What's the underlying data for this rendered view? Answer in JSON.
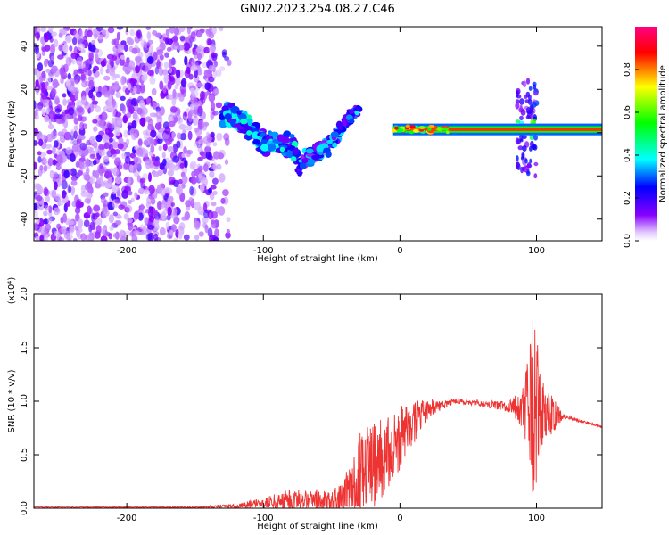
{
  "title": "GN02.2023.254.08.27.C46",
  "chart_data": [
    {
      "type": "heatmap",
      "panel": "spectrogram",
      "xlabel": "Height of straight line (km)",
      "ylabel": "Frequency (Hz)",
      "xlim": [
        -268,
        148
      ],
      "ylim": [
        -50,
        49
      ],
      "xticks": [
        -200,
        -100,
        0,
        100
      ],
      "xtick_labels": [
        "-200",
        "-100",
        "0",
        "100"
      ],
      "yticks": [
        -40,
        -20,
        0,
        20,
        40
      ],
      "ytick_labels": [
        "-40",
        "-20",
        "0",
        "20",
        "40"
      ],
      "colorbar": {
        "label": "Normalized spectral amplitude",
        "range": [
          0,
          1
        ],
        "ticks": [
          0.0,
          0.2,
          0.4,
          0.6,
          0.8
        ],
        "tick_labels": [
          "0.0",
          "0.2",
          "0.4",
          "0.6",
          "0.8"
        ],
        "colors": [
          "#ffffff",
          "#8800ff",
          "#0000ff",
          "#00ffff",
          "#00ff00",
          "#ffff00",
          "#ff0000",
          "#ff0080"
        ]
      },
      "features": [
        {
          "name": "broadband noise",
          "x": [
            -268,
            -135
          ],
          "y": [
            -50,
            49
          ],
          "level": 0.1
        },
        {
          "name": "signal band",
          "x": [
            -5,
            148
          ],
          "y": [
            0,
            3
          ],
          "level": 0.85
        },
        {
          "name": "descending chirp",
          "x": [
            -130,
            -75
          ],
          "y": [
            8,
            -10
          ],
          "level": 0.35
        },
        {
          "name": "arc",
          "x": [
            -75,
            -30
          ],
          "y": [
            -18,
            10
          ],
          "level": 0.3
        },
        {
          "name": "oscillation near 90 km",
          "x": [
            85,
            100
          ],
          "y": [
            -20,
            25
          ],
          "level": 0.2
        }
      ]
    },
    {
      "type": "line",
      "panel": "snr",
      "xlabel": "Height of straight line (km)",
      "ylabel": "SNR (10 * v/v)",
      "scale_label": "(x10⁴)",
      "xlim": [
        -268,
        148
      ],
      "ylim": [
        0,
        2.0
      ],
      "xticks": [
        -200,
        -100,
        0,
        100
      ],
      "xtick_labels": [
        "-200",
        "-100",
        "0",
        "100"
      ],
      "yticks": [
        0,
        0.5,
        1.0,
        1.5,
        2.0
      ],
      "ytick_labels": [
        "0.0",
        "0.5",
        "1.0",
        "1.5",
        "2.0"
      ],
      "color": "#ee3333",
      "envelope": {
        "x": [
          -268,
          -200,
          -150,
          -120,
          -100,
          -80,
          -60,
          -50,
          -40,
          -30,
          -20,
          -10,
          0,
          10,
          20,
          40,
          60,
          80,
          90,
          98,
          105,
          120,
          148
        ],
        "mean": [
          0.01,
          0.01,
          0.01,
          0.02,
          0.05,
          0.08,
          0.08,
          0.07,
          0.12,
          0.3,
          0.4,
          0.5,
          0.65,
          0.8,
          0.92,
          1.0,
          0.98,
          0.95,
          0.93,
          0.9,
          0.88,
          0.86,
          0.76
        ],
        "amp": [
          0.003,
          0.004,
          0.006,
          0.02,
          0.05,
          0.1,
          0.11,
          0.08,
          0.2,
          0.4,
          0.4,
          0.35,
          0.3,
          0.2,
          0.1,
          0.02,
          0.03,
          0.05,
          0.2,
          0.95,
          0.3,
          0.02,
          0.01
        ]
      }
    }
  ]
}
